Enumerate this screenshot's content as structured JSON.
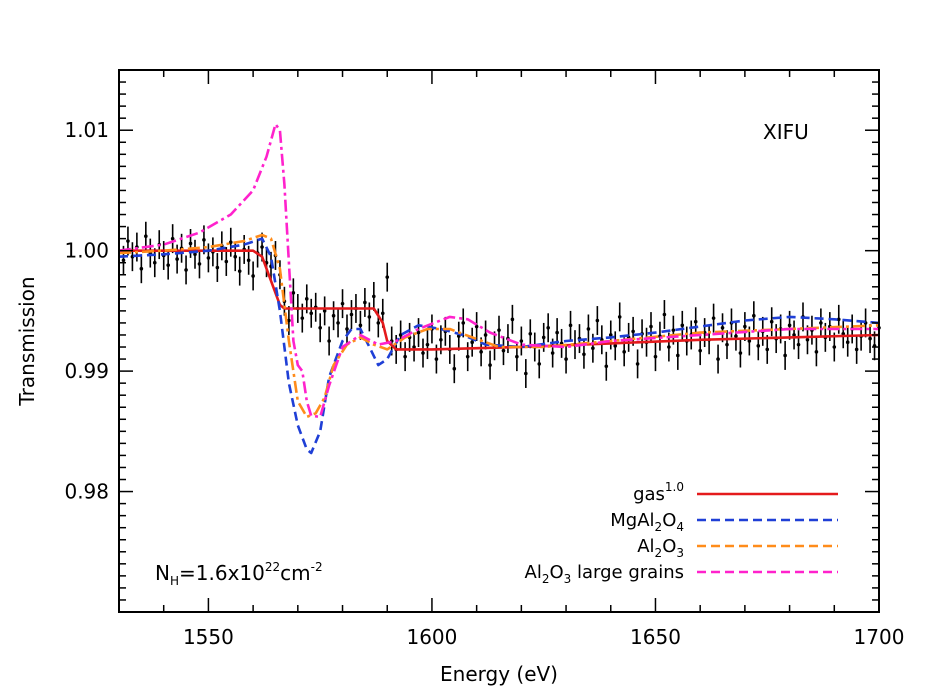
{
  "chart_data": {
    "type": "line",
    "xlabel": "Energy (eV)",
    "ylabel": "Transmission",
    "xlim": [
      1530,
      1700
    ],
    "ylim": [
      0.97,
      1.015
    ],
    "x_ticks": [
      1550,
      1600,
      1650,
      1700
    ],
    "x_tick_labels": [
      "1550",
      "1600",
      "1650",
      "1700"
    ],
    "y_ticks": [
      0.98,
      0.99,
      1.0,
      1.01
    ],
    "y_tick_labels": [
      "0.98",
      "0.99",
      "1.00",
      "1.01"
    ],
    "annotations": {
      "instrument": "XIFU",
      "column_density": {
        "base": "N",
        "sub": "H",
        "mid": "=1.6x10",
        "sup1": "22",
        "unit": "cm",
        "sup2": "-2"
      }
    },
    "legend_position": "bottom-right",
    "series": [
      {
        "name": "gas",
        "name_sup": "1.0",
        "color": "#e41a1c",
        "style": "solid",
        "points": [
          [
            1530,
            1.0
          ],
          [
            1545,
            1.0
          ],
          [
            1560,
            1.0
          ],
          [
            1562,
            0.9995
          ],
          [
            1564,
            0.9975
          ],
          [
            1566,
            0.9955
          ],
          [
            1567,
            0.9952
          ],
          [
            1570,
            0.9952
          ],
          [
            1580,
            0.9952
          ],
          [
            1587,
            0.9952
          ],
          [
            1589,
            0.994
          ],
          [
            1590,
            0.9925
          ],
          [
            1592,
            0.9918
          ],
          [
            1600,
            0.9918
          ],
          [
            1620,
            0.992
          ],
          [
            1640,
            0.9923
          ],
          [
            1660,
            0.9926
          ],
          [
            1680,
            0.9928
          ],
          [
            1700,
            0.993
          ]
        ]
      },
      {
        "name": "MgAl",
        "name_parts": [
          {
            "t": "MgAl"
          },
          {
            "s": "2"
          },
          {
            "t": "O"
          },
          {
            "s": "4"
          }
        ],
        "color": "#1f3fd6",
        "style": "dashed",
        "points": [
          [
            1530,
            0.9995
          ],
          [
            1540,
            0.9997
          ],
          [
            1550,
            1.0
          ],
          [
            1558,
            1.0005
          ],
          [
            1562,
            1.001
          ],
          [
            1564,
            0.9995
          ],
          [
            1566,
            0.995
          ],
          [
            1568,
            0.989
          ],
          [
            1570,
            0.9855
          ],
          [
            1572,
            0.9835
          ],
          [
            1573,
            0.9832
          ],
          [
            1575,
            0.985
          ],
          [
            1577,
            0.9895
          ],
          [
            1580,
            0.9925
          ],
          [
            1582,
            0.9935
          ],
          [
            1584,
            0.9935
          ],
          [
            1586,
            0.992
          ],
          [
            1588,
            0.9905
          ],
          [
            1590,
            0.991
          ],
          [
            1593,
            0.993
          ],
          [
            1597,
            0.9938
          ],
          [
            1602,
            0.9935
          ],
          [
            1607,
            0.993
          ],
          [
            1612,
            0.9922
          ],
          [
            1620,
            0.992
          ],
          [
            1630,
            0.9925
          ],
          [
            1640,
            0.9928
          ],
          [
            1650,
            0.9932
          ],
          [
            1660,
            0.9937
          ],
          [
            1670,
            0.9942
          ],
          [
            1680,
            0.9945
          ],
          [
            1690,
            0.9943
          ],
          [
            1700,
            0.994
          ]
        ]
      },
      {
        "name": "Al",
        "name_parts": [
          {
            "t": "Al"
          },
          {
            "s": "2"
          },
          {
            "t": "O"
          },
          {
            "s": "3"
          }
        ],
        "color": "#ff8c1a",
        "style": "dashdot",
        "points": [
          [
            1530,
            0.9998
          ],
          [
            1540,
            1.0
          ],
          [
            1550,
            1.0003
          ],
          [
            1558,
            1.0008
          ],
          [
            1562,
            1.0013
          ],
          [
            1564,
            1.001
          ],
          [
            1566,
            0.9985
          ],
          [
            1568,
            0.9925
          ],
          [
            1570,
            0.9875
          ],
          [
            1572,
            0.9862
          ],
          [
            1574,
            0.9865
          ],
          [
            1576,
            0.9878
          ],
          [
            1578,
            0.9905
          ],
          [
            1581,
            0.9922
          ],
          [
            1584,
            0.9928
          ],
          [
            1587,
            0.9922
          ],
          [
            1590,
            0.9918
          ],
          [
            1594,
            0.9928
          ],
          [
            1599,
            0.9935
          ],
          [
            1604,
            0.9935
          ],
          [
            1609,
            0.9928
          ],
          [
            1615,
            0.992
          ],
          [
            1625,
            0.992
          ],
          [
            1640,
            0.9925
          ],
          [
            1660,
            0.9932
          ],
          [
            1680,
            0.9935
          ],
          [
            1700,
            0.9938
          ]
        ]
      },
      {
        "name": "Al",
        "name_parts": [
          {
            "t": "Al"
          },
          {
            "s": "2"
          },
          {
            "t": "O"
          },
          {
            "s": "3"
          },
          {
            "t": " large grains"
          }
        ],
        "color": "#ff22cc",
        "style": "dashdot",
        "points": [
          [
            1530,
            1.0
          ],
          [
            1540,
            1.0005
          ],
          [
            1548,
            1.0015
          ],
          [
            1555,
            1.003
          ],
          [
            1560,
            1.005
          ],
          [
            1563,
            1.0078
          ],
          [
            1565,
            1.0105
          ],
          [
            1566,
            1.01
          ],
          [
            1567,
            1.0055
          ],
          [
            1568,
            0.999
          ],
          [
            1569,
            0.9925
          ],
          [
            1570,
            0.9905
          ],
          [
            1571,
            0.99
          ],
          [
            1572,
            0.9875
          ],
          [
            1573,
            0.9863
          ],
          [
            1575,
            0.9862
          ],
          [
            1577,
            0.9888
          ],
          [
            1580,
            0.992
          ],
          [
            1584,
            0.993
          ],
          [
            1588,
            0.9922
          ],
          [
            1592,
            0.9925
          ],
          [
            1597,
            0.9935
          ],
          [
            1604,
            0.9945
          ],
          [
            1608,
            0.9943
          ],
          [
            1613,
            0.9932
          ],
          [
            1620,
            0.9922
          ],
          [
            1630,
            0.992
          ],
          [
            1640,
            0.9925
          ],
          [
            1660,
            0.993
          ],
          [
            1680,
            0.9935
          ],
          [
            1700,
            0.9935
          ]
        ]
      }
    ],
    "data_points": {
      "name": "",
      "color": "#000000",
      "x_start": 1531,
      "x_step": 1,
      "error": 0.0012,
      "y": [
        0.9992,
        1.0008,
        0.9995,
        1.0003,
        0.9985,
        1.0012,
        0.9998,
        0.999,
        1.0005,
        0.9996,
        0.9988,
        1.001,
        0.9993,
        1.0002,
        0.9984,
        1.0006,
        0.9997,
        0.9989,
        1.0009,
        0.9994,
        0.9999,
        0.9986,
        1.0004,
        0.9991,
        1.0007,
        0.9995,
        0.9983,
        1.0001,
        0.9992,
        0.9979,
        0.9998,
        1.0003,
        0.999,
        0.9987,
        0.9996,
        0.998,
        0.9958,
        0.9942,
        0.9965,
        0.9952,
        0.9944,
        0.996,
        0.9948,
        0.9953,
        0.9936,
        0.995,
        0.9925,
        0.9946,
        0.994,
        0.9956,
        0.9935,
        0.9947,
        0.9952,
        0.9938,
        0.9957,
        0.9945,
        0.9962,
        0.994,
        0.9948,
        0.9978,
        0.9925,
        0.9918,
        0.993,
        0.9912,
        0.9928,
        0.992,
        0.9932,
        0.9915,
        0.9922,
        0.9935,
        0.991,
        0.9926,
        0.9933,
        0.9918,
        0.9902,
        0.9929,
        0.994,
        0.9912,
        0.9924,
        0.9937,
        0.9916,
        0.993,
        0.9905,
        0.9921,
        0.9934,
        0.9917,
        0.9927,
        0.9943,
        0.9912,
        0.9925,
        0.9898,
        0.9931,
        0.992,
        0.9906,
        0.9928,
        0.9936,
        0.9915,
        0.9932,
        0.9923,
        0.991,
        0.9938,
        0.9922,
        0.9927,
        0.9914,
        0.9935,
        0.9919,
        0.9942,
        0.9926,
        0.9904,
        0.993,
        0.9921,
        0.9945,
        0.9916,
        0.9928,
        0.9933,
        0.9906,
        0.9931,
        0.9924,
        0.9937,
        0.9912,
        0.9929,
        0.9947,
        0.992,
        0.9934,
        0.9913,
        0.9938,
        0.9925,
        0.993,
        0.9941,
        0.9917,
        0.9932,
        0.9926,
        0.9944,
        0.991,
        0.9936,
        0.9922,
        0.994,
        0.9929,
        0.9915,
        0.9937,
        0.9925,
        0.9946,
        0.9921,
        0.9933,
        0.9918,
        0.9941,
        0.9927,
        0.9935,
        0.9913,
        0.9938,
        0.993,
        0.9922,
        0.9945,
        0.9926,
        0.9934,
        0.9916,
        0.994,
        0.9928,
        0.9937,
        0.992,
        0.9943,
        0.9931,
        0.9924,
        0.9935,
        0.9918,
        0.9929,
        0.994,
        0.9927,
        0.9921,
        0.9936
      ]
    }
  }
}
